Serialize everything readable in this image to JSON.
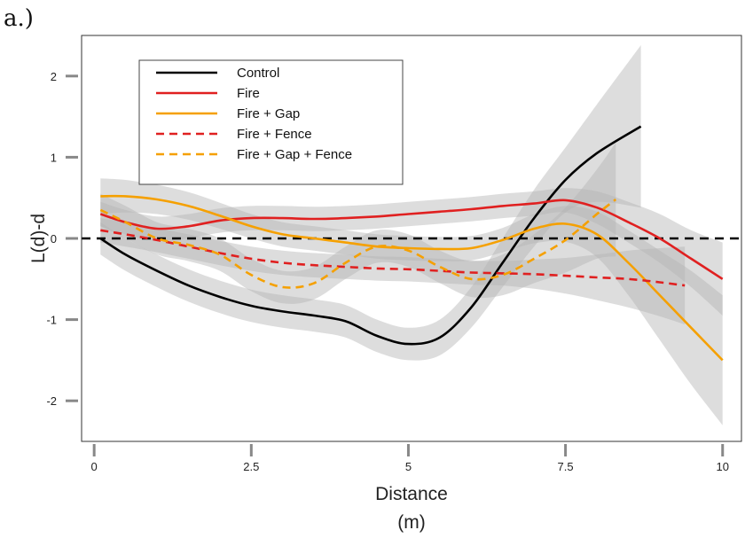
{
  "panel_label": "a.)",
  "chart_data": {
    "type": "line",
    "title": "",
    "xlabel": "Distance",
    "xlabel_unit": "(m)",
    "ylabel": "L(d)-d",
    "xlim": [
      -0.2,
      10.3
    ],
    "ylim": [
      -2.5,
      2.5
    ],
    "xticks": [
      0,
      2.5,
      5,
      7.5,
      10
    ],
    "xtick_labels": [
      "0",
      "2.5",
      "5",
      "7.5",
      "10"
    ],
    "yticks": [
      2,
      1,
      0,
      -1,
      -2
    ],
    "ytick_labels": [
      "2",
      "1",
      "0",
      "-1",
      "-2"
    ],
    "reference_line": {
      "y": 0,
      "style": "dashed",
      "color": "#000000"
    },
    "grid": false,
    "legend_position": "top-left",
    "confidence_band_color": "#b4b4b4",
    "series": [
      {
        "name": "Control",
        "color": "#000000",
        "dash": "solid",
        "x": [
          0.1,
          0.5,
          1,
          1.5,
          2,
          2.5,
          3,
          3.5,
          4,
          4.5,
          5,
          5.5,
          6,
          6.5,
          7,
          7.5,
          8,
          8.7
        ],
        "y": [
          0.0,
          -0.2,
          -0.4,
          -0.58,
          -0.72,
          -0.83,
          -0.9,
          -0.95,
          -1.02,
          -1.2,
          -1.3,
          -1.22,
          -0.85,
          -0.3,
          0.25,
          0.72,
          1.05,
          1.38
        ],
        "ci": [
          0.2,
          0.2,
          0.2,
          0.2,
          0.2,
          0.2,
          0.2,
          0.2,
          0.2,
          0.2,
          0.2,
          0.22,
          0.25,
          0.3,
          0.35,
          0.4,
          0.6,
          1.0
        ]
      },
      {
        "name": "Fire",
        "color": "#e02020",
        "dash": "solid",
        "x": [
          0.1,
          0.5,
          1,
          1.5,
          2,
          2.5,
          3,
          3.5,
          4,
          4.5,
          5,
          5.5,
          6,
          6.5,
          7,
          7.5,
          8,
          8.5,
          9,
          9.5,
          10
        ],
        "y": [
          0.3,
          0.2,
          0.12,
          0.15,
          0.22,
          0.25,
          0.25,
          0.24,
          0.25,
          0.27,
          0.3,
          0.33,
          0.36,
          0.4,
          0.43,
          0.47,
          0.38,
          0.2,
          0.0,
          -0.25,
          -0.5
        ],
        "ci": [
          0.15,
          0.15,
          0.15,
          0.15,
          0.15,
          0.15,
          0.15,
          0.15,
          0.15,
          0.15,
          0.15,
          0.15,
          0.15,
          0.15,
          0.15,
          0.15,
          0.2,
          0.25,
          0.3,
          0.35,
          0.45
        ]
      },
      {
        "name": "Fire + Gap",
        "color": "#f5a000",
        "dash": "solid",
        "x": [
          0.1,
          0.5,
          1,
          1.5,
          2,
          2.5,
          3,
          3.5,
          4,
          4.5,
          5,
          5.5,
          6,
          6.5,
          7,
          7.5,
          8,
          8.5,
          9,
          9.5,
          10
        ],
        "y": [
          0.52,
          0.52,
          0.48,
          0.4,
          0.28,
          0.15,
          0.05,
          0.0,
          -0.05,
          -0.1,
          -0.12,
          -0.13,
          -0.12,
          -0.02,
          0.12,
          0.18,
          0.05,
          -0.3,
          -0.7,
          -1.1,
          -1.5
        ],
        "ci": [
          0.22,
          0.2,
          0.18,
          0.17,
          0.16,
          0.15,
          0.15,
          0.15,
          0.15,
          0.15,
          0.15,
          0.15,
          0.15,
          0.15,
          0.18,
          0.22,
          0.28,
          0.4,
          0.55,
          0.7,
          0.8
        ]
      },
      {
        "name": "Fire + Fence",
        "color": "#e02020",
        "dash": "dashed",
        "x": [
          0.1,
          0.5,
          1,
          1.5,
          2,
          2.5,
          3,
          3.5,
          4,
          4.5,
          5,
          5.5,
          6,
          6.5,
          7,
          7.5,
          8,
          8.5,
          9,
          9.4
        ],
        "y": [
          0.1,
          0.05,
          -0.02,
          -0.1,
          -0.18,
          -0.25,
          -0.3,
          -0.33,
          -0.35,
          -0.37,
          -0.38,
          -0.4,
          -0.42,
          -0.43,
          -0.44,
          -0.46,
          -0.48,
          -0.5,
          -0.54,
          -0.58
        ],
        "ci": [
          0.15,
          0.15,
          0.15,
          0.15,
          0.15,
          0.15,
          0.15,
          0.15,
          0.15,
          0.15,
          0.15,
          0.15,
          0.15,
          0.15,
          0.18,
          0.22,
          0.28,
          0.35,
          0.42,
          0.48
        ]
      },
      {
        "name": "Fire + Gap + Fence",
        "color": "#f5a000",
        "dash": "dashed",
        "x": [
          0.1,
          0.5,
          1,
          1.5,
          2,
          2.5,
          3,
          3.5,
          4,
          4.5,
          5,
          5.5,
          6,
          6.5,
          7,
          7.5,
          8,
          8.3
        ],
        "y": [
          0.35,
          0.2,
          0.0,
          -0.08,
          -0.2,
          -0.45,
          -0.6,
          -0.55,
          -0.3,
          -0.1,
          -0.15,
          -0.35,
          -0.5,
          -0.45,
          -0.25,
          -0.02,
          0.3,
          0.48
        ],
        "ci": [
          0.2,
          0.2,
          0.2,
          0.2,
          0.2,
          0.2,
          0.2,
          0.2,
          0.2,
          0.2,
          0.2,
          0.2,
          0.22,
          0.25,
          0.3,
          0.4,
          0.55,
          0.7
        ]
      }
    ]
  }
}
